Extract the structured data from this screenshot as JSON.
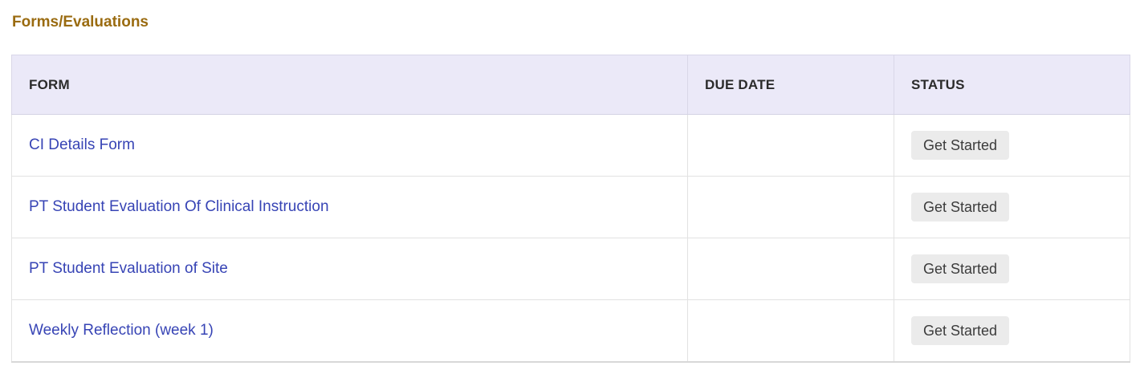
{
  "page": {
    "title": "Forms/Evaluations"
  },
  "colors": {
    "title_text": "#9a6b10",
    "header_bg": "#ebe9f8",
    "header_text": "#2b2b2b",
    "link_text": "#3744b5",
    "button_bg": "#ebebeb",
    "button_text": "#3c3c3c",
    "row_border": "#e2e2e2"
  },
  "table": {
    "headers": [
      "FORM",
      "DUE DATE",
      "STATUS"
    ],
    "rows": [
      {
        "form": "CI Details Form",
        "due_date": "",
        "status_action": "Get Started"
      },
      {
        "form": "PT Student Evaluation Of Clinical Instruction",
        "due_date": "",
        "status_action": "Get Started"
      },
      {
        "form": "PT Student Evaluation of Site",
        "due_date": "",
        "status_action": "Get Started"
      },
      {
        "form": "Weekly Reflection (week 1)",
        "due_date": "",
        "status_action": "Get Started"
      }
    ]
  }
}
